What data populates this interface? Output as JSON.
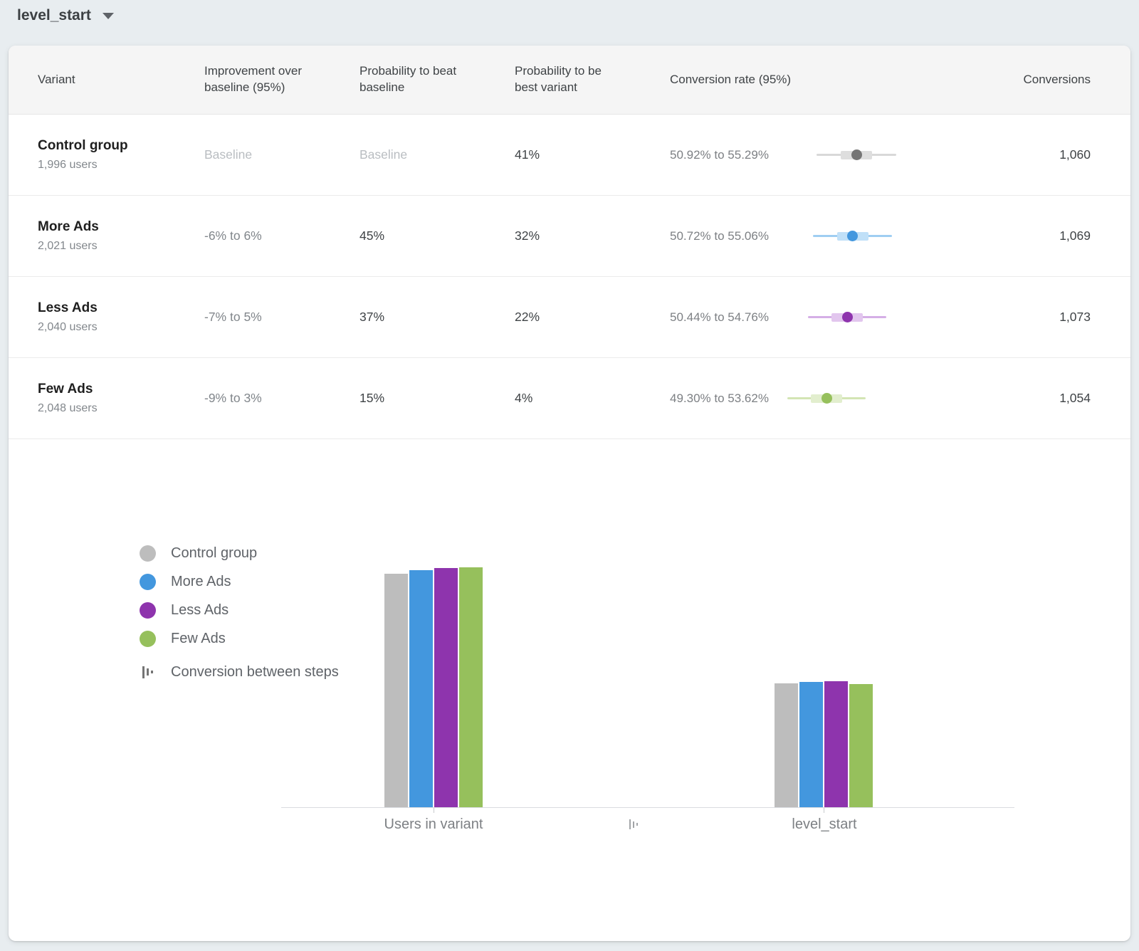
{
  "selector": {
    "label": "level_start"
  },
  "table": {
    "columns": [
      "Variant",
      "Improvement over baseline (95%)",
      "Probability to beat baseline",
      "Probability to be best variant",
      "Conversion rate (95%)",
      "Conversions"
    ],
    "rows": [
      {
        "name": "Control group",
        "users": "1,996 users",
        "improvement": "Baseline",
        "prob_beat": "Baseline",
        "prob_best": "41%",
        "rate_text": "50.92% to 55.29%",
        "rate_low": 50.92,
        "rate_high": 55.29,
        "conversions": "1,060",
        "ci": {
          "dot": "#757575",
          "band": "#dedede",
          "line": "#d8d8d8"
        }
      },
      {
        "name": "More Ads",
        "users": "2,021 users",
        "improvement": "-6% to 6%",
        "prob_beat": "45%",
        "prob_best": "32%",
        "rate_text": "50.72% to 55.06%",
        "rate_low": 50.72,
        "rate_high": 55.06,
        "conversions": "1,069",
        "ci": {
          "dot": "#4397de",
          "band": "#c0e0f8",
          "line": "#9fcef2"
        }
      },
      {
        "name": "Less Ads",
        "users": "2,040 users",
        "improvement": "-7% to 5%",
        "prob_beat": "37%",
        "prob_best": "22%",
        "rate_text": "50.44% to 54.76%",
        "rate_low": 50.44,
        "rate_high": 54.76,
        "conversions": "1,073",
        "ci": {
          "dot": "#8e34ad",
          "band": "#e2c6ee",
          "line": "#d5aee6"
        }
      },
      {
        "name": "Few Ads",
        "users": "2,048 users",
        "improvement": "-9% to 3%",
        "prob_beat": "15%",
        "prob_best": "4%",
        "rate_text": "49.30% to 53.62%",
        "rate_low": 49.3,
        "rate_high": 53.62,
        "conversions": "1,054",
        "ci": {
          "dot": "#96c05c",
          "band": "#e2eece",
          "line": "#d3e5b4"
        }
      }
    ]
  },
  "legend": {
    "steps_label": "Conversion between steps"
  },
  "chart_data": {
    "type": "bar",
    "categories": [
      "Users in variant",
      "level_start"
    ],
    "series": [
      {
        "name": "Control group",
        "color": "#bdbdbd",
        "values": [
          1996,
          1060
        ]
      },
      {
        "name": "More Ads",
        "color": "#4397de",
        "values": [
          2021,
          1069
        ]
      },
      {
        "name": "Less Ads",
        "color": "#8e34ad",
        "values": [
          2040,
          1073
        ]
      },
      {
        "name": "Few Ads",
        "color": "#96c05c",
        "values": [
          2048,
          1054
        ]
      }
    ],
    "title": "",
    "xlabel": "",
    "ylabel": "",
    "ylim": [
      0,
      2100
    ],
    "grid": false,
    "legend_position": "left"
  }
}
